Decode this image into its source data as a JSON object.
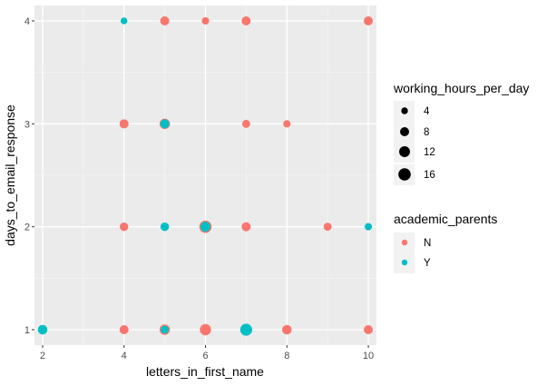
{
  "chart_data": {
    "type": "scatter",
    "xlabel": "letters_in_first_name",
    "ylabel": "days_to_email_response",
    "xlim": [
      1.8,
      10.2
    ],
    "ylim": [
      0.85,
      4.15
    ],
    "x_ticks": [
      "2",
      "4",
      "6",
      "8",
      "10"
    ],
    "y_ticks": [
      "1",
      "2",
      "3",
      "4"
    ],
    "grid": true,
    "legend_position": "right",
    "size_legend": {
      "title": "working_hours_per_day",
      "values": [
        4,
        8,
        12,
        16
      ],
      "labels": [
        "4",
        "8",
        "12",
        "16"
      ]
    },
    "color_legend": {
      "title": "academic_parents",
      "labels": [
        "N",
        "Y"
      ],
      "colors": [
        "#F8766D",
        "#00BFC4"
      ]
    },
    "series": [
      {
        "name": "N",
        "color": "#F8766D",
        "points": [
          {
            "x": 5,
            "y": 4,
            "size": 8
          },
          {
            "x": 6,
            "y": 4,
            "size": 5
          },
          {
            "x": 7,
            "y": 4,
            "size": 8
          },
          {
            "x": 10,
            "y": 4,
            "size": 8
          },
          {
            "x": 4,
            "y": 3,
            "size": 8
          },
          {
            "x": 5,
            "y": 3,
            "size": 11
          },
          {
            "x": 7,
            "y": 3,
            "size": 6
          },
          {
            "x": 8,
            "y": 3,
            "size": 5
          },
          {
            "x": 4,
            "y": 2,
            "size": 7
          },
          {
            "x": 6,
            "y": 2,
            "size": 16
          },
          {
            "x": 7,
            "y": 2,
            "size": 8
          },
          {
            "x": 9,
            "y": 2,
            "size": 6
          },
          {
            "x": 4,
            "y": 1,
            "size": 8
          },
          {
            "x": 5,
            "y": 1,
            "size": 11
          },
          {
            "x": 6,
            "y": 1,
            "size": 13
          },
          {
            "x": 7,
            "y": 1,
            "size": 8
          },
          {
            "x": 8,
            "y": 1,
            "size": 9
          },
          {
            "x": 10,
            "y": 1,
            "size": 8
          }
        ]
      },
      {
        "name": "Y",
        "color": "#00BFC4",
        "points": [
          {
            "x": 4,
            "y": 4,
            "size": 4
          },
          {
            "x": 5,
            "y": 3,
            "size": 8
          },
          {
            "x": 5,
            "y": 2,
            "size": 7
          },
          {
            "x": 6,
            "y": 2,
            "size": 10
          },
          {
            "x": 10,
            "y": 2,
            "size": 5
          },
          {
            "x": 2,
            "y": 1,
            "size": 9
          },
          {
            "x": 5,
            "y": 1,
            "size": 6
          },
          {
            "x": 7,
            "y": 1,
            "size": 15
          }
        ]
      }
    ]
  }
}
